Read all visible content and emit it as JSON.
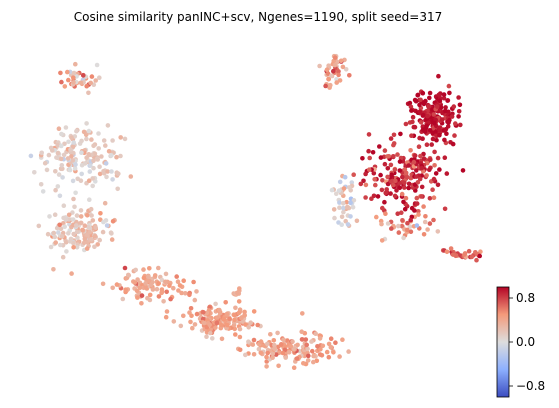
{
  "chart_data": {
    "type": "scatter",
    "title": "Cosine similarity panINC+scv, Ngenes=1190, split seed=317",
    "xlabel": "",
    "ylabel": "",
    "axes_visible": false,
    "grid": false,
    "colormap": "coolwarm",
    "color_range": [
      -1,
      1
    ],
    "colorbar": {
      "position": "bottom-right",
      "ticks": [
        0.8,
        0.0,
        -0.8
      ],
      "tick_labels": [
        "0.8",
        "0.0",
        "−0.8"
      ]
    },
    "clusters": [
      {
        "name": "",
        "center": [
          81,
          78
        ],
        "spread": [
          14,
          10
        ],
        "n": 40,
        "mean": 0.35,
        "sd": 0.25
      },
      {
        "name": "",
        "center": [
          78,
          155
        ],
        "spread": [
          30,
          28
        ],
        "n": 170,
        "mean": 0.12,
        "sd": 0.14
      },
      {
        "name": "",
        "center": [
          78,
          230
        ],
        "spread": [
          26,
          22
        ],
        "n": 150,
        "mean": 0.22,
        "sd": 0.14
      },
      {
        "name": "",
        "center": [
          150,
          285
        ],
        "spread": [
          28,
          12
        ],
        "n": 100,
        "mean": 0.4,
        "sd": 0.12
      },
      {
        "name": "",
        "center": [
          220,
          320
        ],
        "spread": [
          32,
          12
        ],
        "n": 150,
        "mean": 0.42,
        "sd": 0.1
      },
      {
        "name": "",
        "center": [
          290,
          348
        ],
        "spread": [
          38,
          12
        ],
        "n": 150,
        "mean": 0.42,
        "sd": 0.12
      },
      {
        "name": "",
        "center": [
          237,
          295
        ],
        "spread": [
          4,
          6
        ],
        "n": 10,
        "mean": 0.4,
        "sd": 0.1
      },
      {
        "name": "",
        "center": [
          335,
          72
        ],
        "spread": [
          10,
          15
        ],
        "n": 40,
        "mean": 0.45,
        "sd": 0.2
      },
      {
        "name": "",
        "center": [
          345,
          200
        ],
        "spread": [
          8,
          25
        ],
        "n": 45,
        "mean": 0.1,
        "sd": 0.2
      },
      {
        "name": "",
        "center": [
          436,
          115
        ],
        "spread": [
          20,
          22
        ],
        "n": 200,
        "mean": 0.95,
        "sd": 0.1
      },
      {
        "name": "",
        "center": [
          403,
          175
        ],
        "spread": [
          35,
          28
        ],
        "n": 200,
        "mean": 0.85,
        "sd": 0.14
      },
      {
        "name": "",
        "center": [
          410,
          225
        ],
        "spread": [
          22,
          12
        ],
        "n": 40,
        "mean": 0.5,
        "sd": 0.25
      },
      {
        "name": "",
        "center": [
          462,
          255
        ],
        "spread": [
          18,
          5
        ],
        "n": 30,
        "mean": 0.75,
        "sd": 0.2
      }
    ]
  }
}
